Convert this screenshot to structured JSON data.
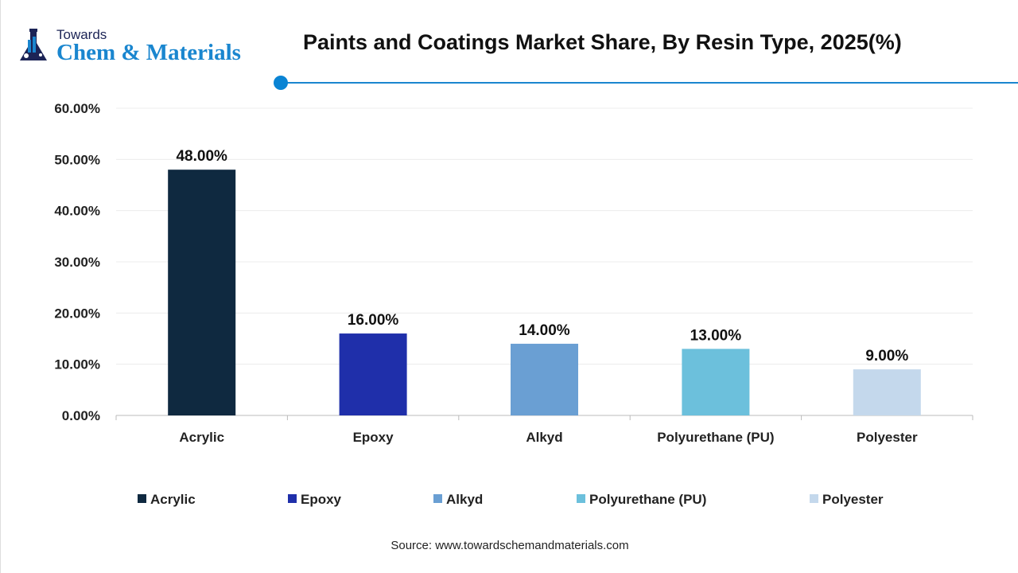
{
  "logo": {
    "line1": "Towards",
    "line2": "Chem & Materials"
  },
  "chart_data": {
    "type": "bar",
    "title": "Paints and Coatings Market Share, By Resin Type, 2025(%)",
    "categories": [
      "Acrylic",
      "Epoxy",
      "Alkyd",
      "Polyurethane (PU)",
      "Polyester"
    ],
    "values": [
      48,
      16,
      14,
      13,
      9
    ],
    "data_labels": [
      "48.00%",
      "16.00%",
      "14.00%",
      "13.00%",
      "9.00%"
    ],
    "colors": [
      "#0f2940",
      "#1f2faa",
      "#6a9fd3",
      "#6cc0dc",
      "#c4d8ec"
    ],
    "ylim": [
      0,
      60
    ],
    "yticks": [
      "0.00%",
      "10.00%",
      "20.00%",
      "30.00%",
      "40.00%",
      "50.00%",
      "60.00%"
    ],
    "grid": true,
    "legend": "bottom"
  },
  "source": "Source: www.towardschemandmaterials.com"
}
